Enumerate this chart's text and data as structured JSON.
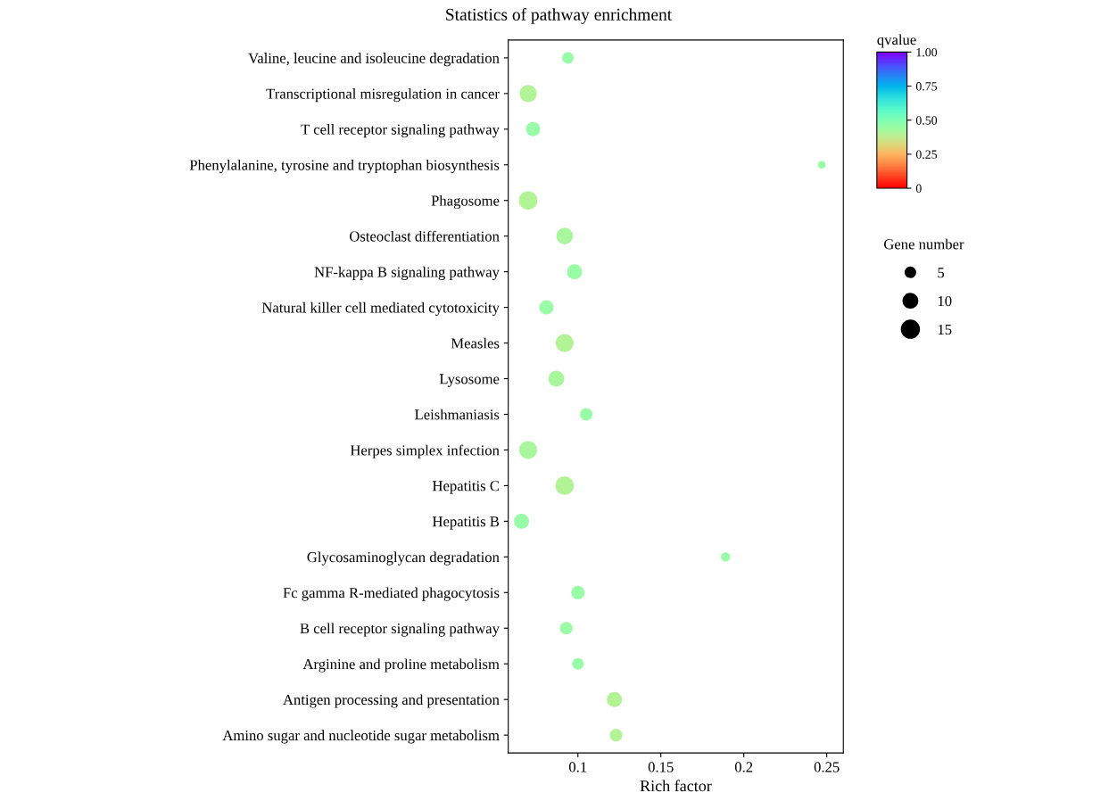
{
  "chart_data": {
    "type": "bubble",
    "title": "Statistics of pathway enrichment",
    "xlabel": "Rich factor",
    "clabel": "qvalue",
    "legend_title": "Gene number",
    "categories": [
      "Valine, leucine and isoleucine degradation",
      "Transcriptional misregulation in cancer",
      "T cell receptor signaling pathway",
      "Phenylalanine, tyrosine and tryptophan biosynthesis",
      "Phagosome",
      "Osteoclast differentiation",
      "NF-kappa B signaling pathway",
      "Natural killer cell mediated cytotoxicity",
      "Measles",
      "Lysosome",
      "Leishmaniasis",
      "Herpes simplex infection",
      "Hepatitis C",
      "Hepatitis B",
      "Glycosaminoglycan degradation",
      "Fc gamma R-mediated phagocytosis",
      "B cell receptor signaling pathway",
      "Arginine and proline metabolism",
      "Antigen processing and presentation",
      "Amino sugar and nucleotide sugar metabolism"
    ],
    "orientation": "horizontal",
    "values": [
      0.094,
      0.07,
      0.073,
      0.247,
      0.07,
      0.092,
      0.098,
      0.081,
      0.092,
      0.087,
      0.105,
      0.07,
      0.092,
      0.066,
      0.189,
      0.1,
      0.093,
      0.1,
      0.122,
      0.123
    ],
    "sizes": [
      5,
      12,
      8,
      2,
      14,
      11,
      9,
      8,
      13,
      10,
      6,
      13,
      14,
      9,
      3,
      7,
      6,
      5,
      9,
      6
    ],
    "size_legend": [
      5,
      10,
      15
    ],
    "cvalues": [
      0.45,
      0.4,
      0.45,
      0.45,
      0.4,
      0.42,
      0.45,
      0.45,
      0.4,
      0.42,
      0.45,
      0.42,
      0.4,
      0.45,
      0.45,
      0.45,
      0.45,
      0.45,
      0.4,
      0.4
    ],
    "clim": [
      0,
      1
    ],
    "cticks": [
      0,
      0.25,
      {
        "value": 0.5,
        "label": "0.50"
      },
      0.75,
      {
        "value": 1,
        "label": "1.00"
      }
    ],
    "xlim": [
      0.058,
      0.26
    ],
    "xticks": [
      0.1,
      0.15,
      0.2,
      0.25
    ],
    "grid": false
  }
}
